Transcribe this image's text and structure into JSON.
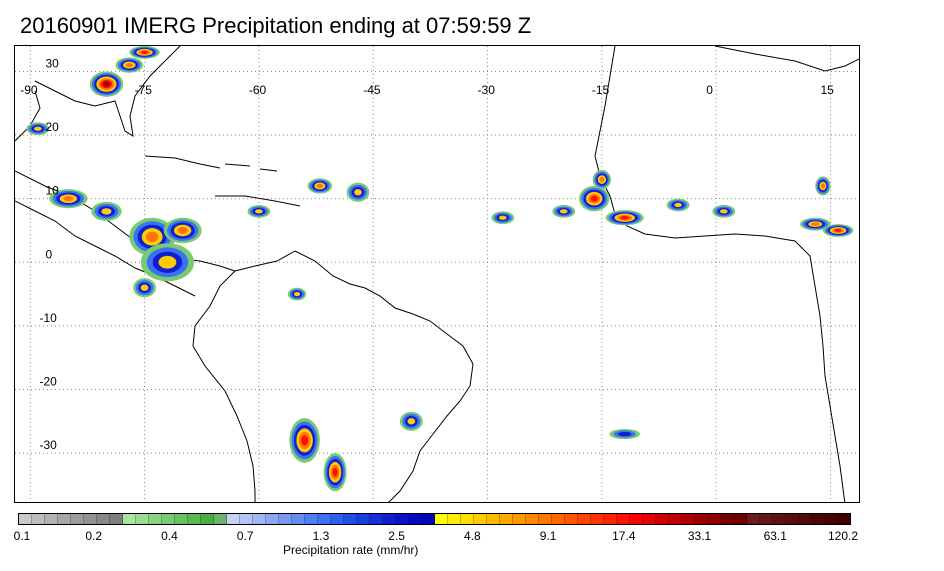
{
  "title": "20160901 IMERG Precipitation ending at 07:59:59 Z",
  "map": {
    "lon_labels": [
      "-90",
      "-75",
      "-60",
      "-45",
      "-30",
      "-15",
      "0",
      "15"
    ],
    "lat_labels": [
      "30",
      "20",
      "10",
      "0",
      "-10",
      "-20",
      "-30"
    ],
    "lon_values": [
      -90,
      -75,
      -60,
      -45,
      -30,
      -15,
      0,
      15
    ],
    "lat_values": [
      30,
      20,
      10,
      0,
      -10,
      -20,
      -30
    ],
    "extent": {
      "lon_min": -92,
      "lon_max": 19,
      "lat_min": -38,
      "lat_max": 34
    },
    "gridlines": "dotted"
  },
  "colorbar": {
    "label": "Precipitation rate (mm/hr)",
    "tick_labels": [
      "0.1",
      "0.2",
      "0.4",
      "0.7",
      "1.3",
      "2.5",
      "4.8",
      "9.1",
      "17.4",
      "33.1",
      "63.1",
      "120.2"
    ],
    "colors": [
      "#c8c8c8",
      "#bdbdbd",
      "#b2b2b2",
      "#a7a7a7",
      "#9c9c9c",
      "#929292",
      "#888888",
      "#7e7e7e",
      "#a8e6a0",
      "#98dd90",
      "#88d480",
      "#78cb70",
      "#68c260",
      "#58b950",
      "#48b040",
      "#6db36d",
      "#c8d2f5",
      "#b4c4f5",
      "#a0b6f5",
      "#8ca8f5",
      "#789af5",
      "#648cf5",
      "#507ef5",
      "#3c70f5",
      "#2a5ff0",
      "#1f4ee8",
      "#1a3fe0",
      "#1530d8",
      "#1020d0",
      "#0b12c8",
      "#0808c0",
      "#0404b8",
      "#ffff00",
      "#ffee00",
      "#ffdd00",
      "#ffcc00",
      "#ffbb00",
      "#ffaa00",
      "#ff9900",
      "#ff8800",
      "#ff7700",
      "#ff6600",
      "#ff5500",
      "#ff4400",
      "#ff3300",
      "#ff2200",
      "#ff1100",
      "#ff0000",
      "#e60000",
      "#d40000",
      "#c20000",
      "#b00000",
      "#9e0000",
      "#8c0000",
      "#7a0000",
      "#6e0000",
      "#6a1a1a",
      "#641616",
      "#5e1212",
      "#580e0e",
      "#520a0a",
      "#4c0606",
      "#460303",
      "#400000"
    ]
  },
  "precip_cells": [
    {
      "lon": -80,
      "lat": 28,
      "rx": 2.2,
      "ry": 2.0,
      "level": 10
    },
    {
      "lon": -77,
      "lat": 31,
      "rx": 1.8,
      "ry": 1.2,
      "level": 7
    },
    {
      "lon": -75,
      "lat": 33,
      "rx": 2.0,
      "ry": 1.0,
      "level": 8
    },
    {
      "lon": -89,
      "lat": 21,
      "rx": 1.5,
      "ry": 1.0,
      "level": 5
    },
    {
      "lon": -85,
      "lat": 10,
      "rx": 2.5,
      "ry": 1.5,
      "level": 7
    },
    {
      "lon": -80,
      "lat": 8,
      "rx": 2.0,
      "ry": 1.5,
      "level": 6
    },
    {
      "lon": -74,
      "lat": 4,
      "rx": 3.0,
      "ry": 3.0,
      "level": 7
    },
    {
      "lon": -72,
      "lat": 0,
      "rx": 3.5,
      "ry": 3.0,
      "level": 6
    },
    {
      "lon": -70,
      "lat": 5,
      "rx": 2.5,
      "ry": 2.0,
      "level": 7
    },
    {
      "lon": -75,
      "lat": -4,
      "rx": 1.5,
      "ry": 1.5,
      "level": 6
    },
    {
      "lon": -60,
      "lat": 8,
      "rx": 1.5,
      "ry": 1.0,
      "level": 5
    },
    {
      "lon": -52,
      "lat": 12,
      "rx": 1.6,
      "ry": 1.2,
      "level": 7
    },
    {
      "lon": -47,
      "lat": 11,
      "rx": 1.5,
      "ry": 1.5,
      "level": 6
    },
    {
      "lon": -55,
      "lat": -5,
      "rx": 1.2,
      "ry": 1.0,
      "level": 5
    },
    {
      "lon": -28,
      "lat": 7,
      "rx": 1.5,
      "ry": 1.0,
      "level": 6
    },
    {
      "lon": -20,
      "lat": 8,
      "rx": 1.5,
      "ry": 1.0,
      "level": 5
    },
    {
      "lon": -16,
      "lat": 10,
      "rx": 2.0,
      "ry": 2.0,
      "level": 8
    },
    {
      "lon": -15,
      "lat": 13,
      "rx": 1.2,
      "ry": 1.5,
      "level": 7
    },
    {
      "lon": -12,
      "lat": 7,
      "rx": 2.5,
      "ry": 1.2,
      "level": 8
    },
    {
      "lon": -5,
      "lat": 9,
      "rx": 1.5,
      "ry": 1.0,
      "level": 6
    },
    {
      "lon": 1,
      "lat": 8,
      "rx": 1.5,
      "ry": 1.0,
      "level": 5
    },
    {
      "lon": 13,
      "lat": 6,
      "rx": 2.0,
      "ry": 1.0,
      "level": 7
    },
    {
      "lon": 16,
      "lat": 5,
      "rx": 2.0,
      "ry": 1.0,
      "level": 8
    },
    {
      "lon": 14,
      "lat": 12,
      "rx": 1.0,
      "ry": 1.5,
      "level": 7
    },
    {
      "lon": -54,
      "lat": -28,
      "rx": 2.0,
      "ry": 3.5,
      "level": 9
    },
    {
      "lon": -50,
      "lat": -33,
      "rx": 1.5,
      "ry": 3.0,
      "level": 8
    },
    {
      "lon": -40,
      "lat": -25,
      "rx": 1.5,
      "ry": 1.5,
      "level": 5
    },
    {
      "lon": -12,
      "lat": -27,
      "rx": 2.0,
      "ry": 0.8,
      "level": 4
    }
  ]
}
